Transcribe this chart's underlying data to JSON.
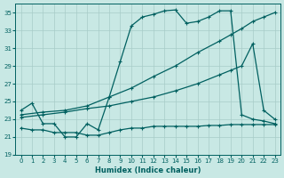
{
  "xlabel": "Humidex (Indice chaleur)",
  "xlim": [
    -0.5,
    23.5
  ],
  "ylim": [
    19,
    36
  ],
  "yticks": [
    19,
    21,
    23,
    25,
    27,
    29,
    31,
    33,
    35
  ],
  "xticks": [
    0,
    1,
    2,
    3,
    4,
    5,
    6,
    7,
    8,
    9,
    10,
    11,
    12,
    13,
    14,
    15,
    16,
    17,
    18,
    19,
    20,
    21,
    22,
    23
  ],
  "bg_color": "#c8e8e4",
  "grid_color": "#a8ccc8",
  "line_color": "#006060",
  "curve1_x": [
    0,
    1,
    2,
    3,
    4,
    5,
    6,
    7,
    8,
    9,
    10,
    11,
    12,
    13,
    14,
    15,
    16,
    17,
    18,
    19,
    20,
    21,
    22,
    23
  ],
  "curve1_y": [
    24.0,
    24.8,
    22.5,
    22.5,
    21.0,
    21.0,
    22.5,
    21.8,
    25.5,
    29.5,
    33.5,
    34.5,
    34.8,
    35.2,
    35.3,
    33.8,
    34.0,
    34.5,
    35.2,
    35.2,
    23.5,
    23.0,
    22.8,
    22.5
  ],
  "curve2_x": [
    0,
    2,
    4,
    6,
    8,
    10,
    12,
    14,
    16,
    18,
    19,
    20,
    21,
    22,
    23
  ],
  "curve2_y": [
    23.5,
    23.8,
    24.0,
    24.5,
    25.5,
    26.5,
    27.8,
    29.0,
    30.5,
    31.8,
    32.5,
    33.2,
    34.0,
    34.5,
    35.0
  ],
  "curve3_x": [
    0,
    2,
    4,
    6,
    8,
    10,
    12,
    14,
    16,
    18,
    19,
    20,
    21,
    22,
    23
  ],
  "curve3_y": [
    23.2,
    23.5,
    23.8,
    24.2,
    24.5,
    25.0,
    25.5,
    26.2,
    27.0,
    28.0,
    28.5,
    29.0,
    31.5,
    24.0,
    23.0
  ],
  "curve4_x": [
    0,
    1,
    2,
    3,
    4,
    5,
    6,
    7,
    8,
    9,
    10,
    11,
    12,
    13,
    14,
    15,
    16,
    17,
    18,
    19,
    20,
    21,
    22,
    23
  ],
  "curve4_y": [
    22.0,
    21.8,
    21.8,
    21.5,
    21.5,
    21.5,
    21.2,
    21.2,
    21.5,
    21.8,
    22.0,
    22.0,
    22.2,
    22.2,
    22.2,
    22.2,
    22.2,
    22.3,
    22.3,
    22.4,
    22.4,
    22.4,
    22.4,
    22.4
  ]
}
